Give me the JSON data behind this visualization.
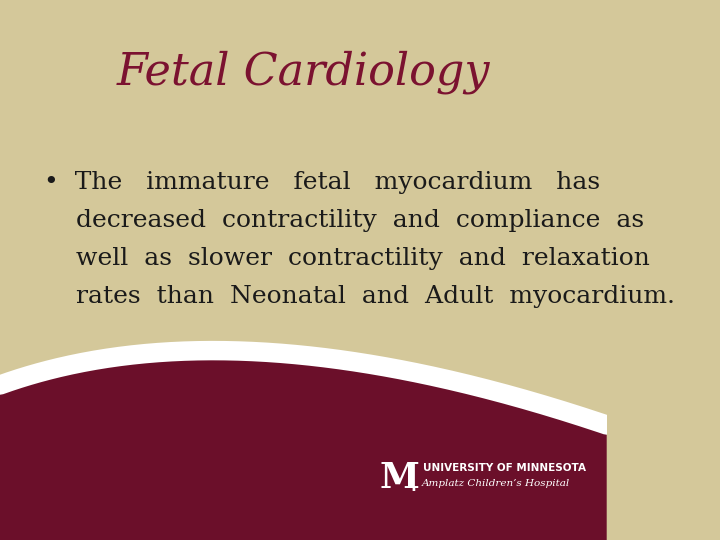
{
  "title": "Fetal Cardiology",
  "title_color": "#7B1230",
  "title_fontsize": 32,
  "bg_color": "#D4C89A",
  "dark_maroon": "#6B0F2A",
  "bullet_text_line1": "•  The   immature   fetal   myocardium   has",
  "bullet_text_line2": "    decreased  contractility  and  compliance  as",
  "bullet_text_line3": "    well  as  slower  contractility  and  relaxation",
  "bullet_text_line4": "    rates  than  Neonatal  and  Adult  myocardium.",
  "body_fontsize": 18,
  "body_color": "#1a1a1a",
  "univ_text": "UNIVERSITY OF MINNESOTA",
  "hosp_text": "Amplatz Children’s Hospital"
}
